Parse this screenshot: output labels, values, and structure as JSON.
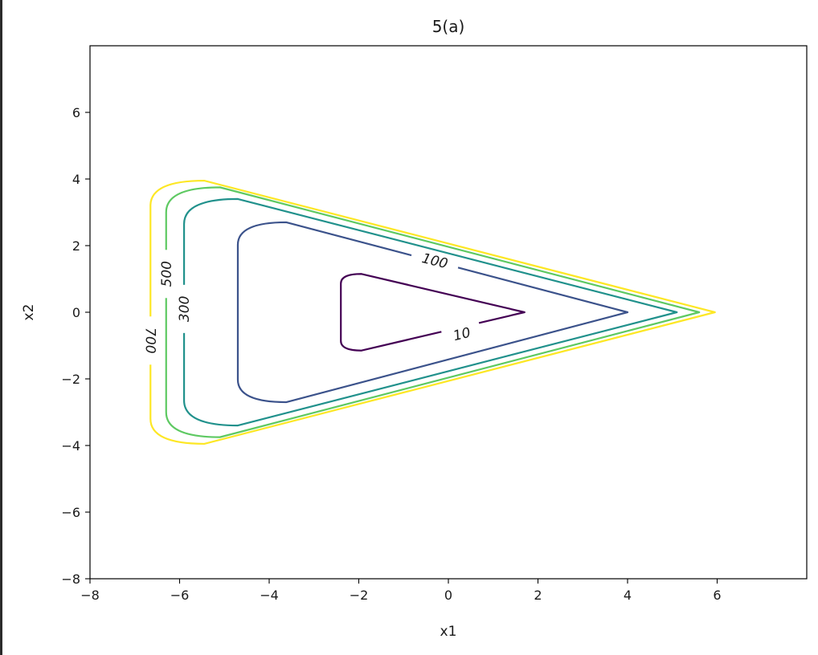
{
  "chart_data": {
    "type": "contour",
    "title": "5(a)",
    "xlabel": "x1",
    "ylabel": "x2",
    "xlim": [
      -8,
      8
    ],
    "ylim": [
      -8,
      8
    ],
    "xticks": [
      -8,
      -6,
      -4,
      -2,
      0,
      2,
      4,
      6
    ],
    "yticks": [
      -8,
      -6,
      -4,
      -2,
      0,
      2,
      4,
      6
    ],
    "xtick_labels": [
      "−8",
      "−6",
      "−4",
      "−2",
      "0",
      "2",
      "4",
      "6"
    ],
    "ytick_labels": [
      "−8",
      "−6",
      "−4",
      "−2",
      "0",
      "2",
      "4",
      "6"
    ],
    "grid": false,
    "colormap": "viridis",
    "levels": [
      {
        "value": 10,
        "label": "10",
        "color": "#440154",
        "points": [
          [
            -1.8,
            1.15
          ],
          [
            -2.4,
            0.9
          ],
          [
            -2.45,
            0.0
          ],
          [
            -2.4,
            -0.9
          ],
          [
            -1.8,
            1.15
          ],
          [
            1.7,
            0.0
          ]
        ]
      },
      {
        "value": 100,
        "label": "100",
        "color": "#3b528b",
        "points": [
          [
            -4.4,
            2.7
          ],
          [
            -4.7,
            2.3
          ],
          [
            -4.7,
            -2.3
          ],
          [
            -4.3,
            -2.7
          ],
          [
            4.0,
            0.0
          ]
        ]
      },
      {
        "value": 300,
        "label": "300",
        "color": "#21918c",
        "points": [
          [
            -5.4,
            3.4
          ],
          [
            -5.9,
            3.0
          ],
          [
            -5.9,
            -3.0
          ],
          [
            -5.4,
            -3.4
          ],
          [
            5.1,
            0.0
          ]
        ]
      },
      {
        "value": 500,
        "label": "500",
        "color": "#5ec962",
        "points": [
          [
            -5.9,
            3.75
          ],
          [
            -6.3,
            3.4
          ],
          [
            -6.3,
            -3.4
          ],
          [
            -5.9,
            -3.75
          ],
          [
            5.6,
            0.0
          ]
        ]
      },
      {
        "value": 700,
        "label": "700",
        "color": "#fde725",
        "points": [
          [
            -6.1,
            3.95
          ],
          [
            -6.65,
            3.6
          ],
          [
            -6.65,
            -3.6
          ],
          [
            -6.1,
            -3.95
          ],
          [
            5.95,
            0.0
          ]
        ]
      }
    ]
  }
}
